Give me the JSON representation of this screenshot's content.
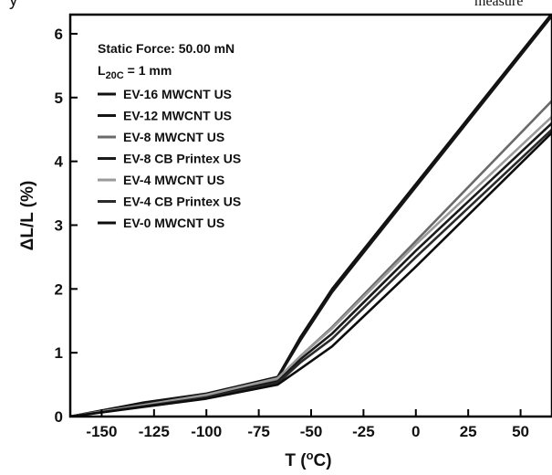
{
  "chart_data": {
    "type": "line",
    "title": "",
    "top_text_fragment": "y",
    "top_text_fragment_right": "measure",
    "xlabel": "T (°C)",
    "xlabel_main": "T (",
    "xlabel_deg": "o",
    "xlabel_unit": "C)",
    "ylabel": "ΔL/L (%)",
    "xlim": [
      -165,
      65
    ],
    "ylim": [
      0,
      6.3
    ],
    "x_ticks": [
      -150,
      -125,
      -100,
      -75,
      -50,
      -25,
      0,
      25,
      50
    ],
    "x_tick_labels": [
      "-150",
      "-125",
      "-100",
      "-75",
      "-50",
      "-25",
      "0",
      "25",
      "50"
    ],
    "y_ticks": [
      0,
      1,
      2,
      3,
      4,
      5,
      6
    ],
    "y_tick_labels": [
      "0",
      "1",
      "2",
      "3",
      "4",
      "5",
      "6"
    ],
    "grid": false,
    "legend_position": "top-left",
    "annotations": {
      "static_force": "Static Force: 50.00 mN",
      "l20c_main": "L",
      "l20c_sub": "20C",
      "l20c_value": " = 1 mm"
    },
    "series": [
      {
        "name": "EV-16 MWCNT US",
        "color": "#111111",
        "x": [
          -165,
          -130,
          -100,
          -66,
          -55,
          -40,
          65
        ],
        "y": [
          0.0,
          0.22,
          0.36,
          0.62,
          1.25,
          2.0,
          6.32
        ]
      },
      {
        "name": "EV-12 MWCNT US",
        "color": "#151515",
        "x": [
          -165,
          -130,
          -100,
          -66,
          -55,
          -40,
          65
        ],
        "y": [
          0.0,
          0.2,
          0.35,
          0.6,
          1.2,
          1.95,
          6.28
        ]
      },
      {
        "name": "EV-8 MWCNT US",
        "color": "#6a6a6a",
        "x": [
          -165,
          -130,
          -100,
          -66,
          -55,
          -40,
          0,
          65
        ],
        "y": [
          0.0,
          0.18,
          0.33,
          0.58,
          0.95,
          1.4,
          2.75,
          4.95
        ]
      },
      {
        "name": "EV-8 CB Printex US",
        "color": "#1a1a1a",
        "x": [
          -165,
          -130,
          -100,
          -66,
          -55,
          -40,
          0,
          65
        ],
        "y": [
          0.0,
          0.17,
          0.32,
          0.55,
          0.9,
          1.3,
          2.6,
          4.6
        ]
      },
      {
        "name": "EV-4 MWCNT US",
        "color": "#9a9a9a",
        "x": [
          -165,
          -130,
          -100,
          -66,
          -55,
          -40,
          0,
          65
        ],
        "y": [
          0.0,
          0.18,
          0.34,
          0.6,
          0.95,
          1.38,
          2.7,
          4.7
        ]
      },
      {
        "name": "EV-4 CB Printex US",
        "color": "#2a2a2a",
        "x": [
          -165,
          -130,
          -100,
          -66,
          -55,
          -40,
          0,
          65
        ],
        "y": [
          0.0,
          0.16,
          0.3,
          0.52,
          0.85,
          1.22,
          2.5,
          4.5
        ]
      },
      {
        "name": "EV-0 MWCNT US",
        "color": "#0d0d0d",
        "x": [
          -165,
          -130,
          -100,
          -66,
          -55,
          -40,
          0,
          65
        ],
        "y": [
          0.0,
          0.15,
          0.28,
          0.5,
          0.75,
          1.1,
          2.35,
          4.45
        ]
      }
    ]
  }
}
